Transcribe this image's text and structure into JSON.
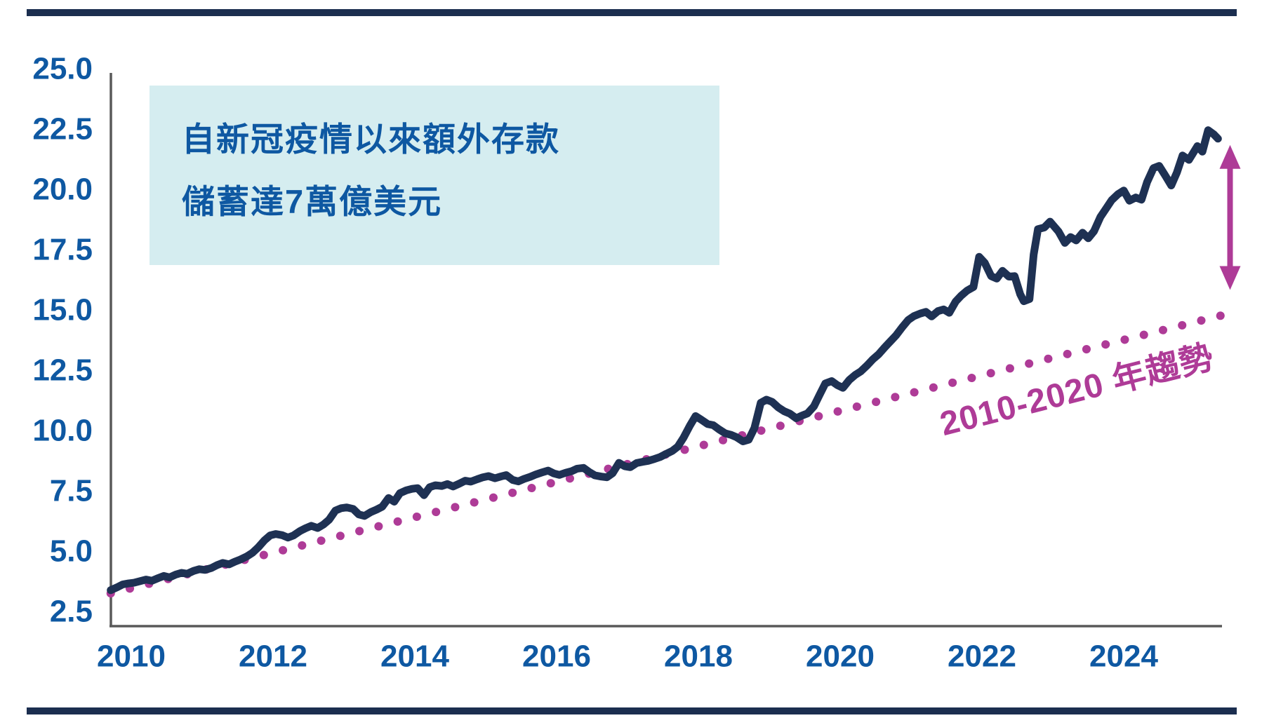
{
  "page": {
    "background": "#ffffff",
    "frame_bar_color": "#1b2e4f"
  },
  "annotation_box": {
    "line1": "自新冠疫情以來額外存款",
    "line2": "儲蓄達7萬億美元",
    "bg_color": "#d5edf0",
    "text_color": "#0e58a2"
  },
  "trend_label": {
    "text": "2010-2020 年趨勢",
    "color": "#ae3b97",
    "rotation_deg": -14.2
  },
  "chart_data": {
    "type": "line",
    "title": "自新冠疫情以來額外存款儲蓄達7萬億美元",
    "grid": false,
    "colors": {
      "series": "#1e3153",
      "trend": "#ae3b97",
      "axis_line": "#595959",
      "tick_label": "#0e58a2"
    },
    "x_axis": {
      "min": 2009.7,
      "max": 2025.45,
      "tick_values": [
        2010,
        2012,
        2014,
        2016,
        2018,
        2020,
        2022,
        2024
      ],
      "tick_labels": [
        "2010",
        "2012",
        "2014",
        "2016",
        "2018",
        "2020",
        "2022",
        "2024"
      ]
    },
    "y_axis": {
      "min": 1.9,
      "max": 25.0,
      "tick_values": [
        25.0,
        22.5,
        20.0,
        17.5,
        15.0,
        12.5,
        10.0,
        7.5,
        5.0,
        2.5
      ],
      "tick_labels": [
        "25.0",
        "22.5",
        "20.0",
        "17.5",
        "15.0",
        "12.5",
        "10.0",
        "7.5",
        "5.0",
        "2.5"
      ]
    },
    "series": [
      {
        "style": "solid",
        "color": "#1e3153",
        "points": [
          [
            2009.71,
            3.38
          ],
          [
            2009.8,
            3.5
          ],
          [
            2009.88,
            3.62
          ],
          [
            2009.96,
            3.66
          ],
          [
            2010.04,
            3.69
          ],
          [
            2010.13,
            3.76
          ],
          [
            2010.21,
            3.82
          ],
          [
            2010.29,
            3.77
          ],
          [
            2010.38,
            3.88
          ],
          [
            2010.46,
            3.97
          ],
          [
            2010.54,
            3.91
          ],
          [
            2010.63,
            4.03
          ],
          [
            2010.71,
            4.1
          ],
          [
            2010.79,
            4.06
          ],
          [
            2010.88,
            4.18
          ],
          [
            2010.96,
            4.25
          ],
          [
            2011.04,
            4.22
          ],
          [
            2011.13,
            4.3
          ],
          [
            2011.21,
            4.42
          ],
          [
            2011.29,
            4.51
          ],
          [
            2011.38,
            4.45
          ],
          [
            2011.46,
            4.56
          ],
          [
            2011.54,
            4.65
          ],
          [
            2011.63,
            4.78
          ],
          [
            2011.71,
            4.93
          ],
          [
            2011.79,
            5.15
          ],
          [
            2011.88,
            5.45
          ],
          [
            2011.96,
            5.65
          ],
          [
            2012.04,
            5.71
          ],
          [
            2012.13,
            5.66
          ],
          [
            2012.21,
            5.56
          ],
          [
            2012.29,
            5.65
          ],
          [
            2012.38,
            5.83
          ],
          [
            2012.46,
            5.95
          ],
          [
            2012.54,
            6.05
          ],
          [
            2012.63,
            5.96
          ],
          [
            2012.71,
            6.1
          ],
          [
            2012.79,
            6.3
          ],
          [
            2012.88,
            6.68
          ],
          [
            2012.96,
            6.78
          ],
          [
            2013.04,
            6.81
          ],
          [
            2013.13,
            6.75
          ],
          [
            2013.21,
            6.52
          ],
          [
            2013.29,
            6.46
          ],
          [
            2013.38,
            6.62
          ],
          [
            2013.46,
            6.72
          ],
          [
            2013.54,
            6.84
          ],
          [
            2013.63,
            7.2
          ],
          [
            2013.71,
            7.05
          ],
          [
            2013.79,
            7.4
          ],
          [
            2013.88,
            7.52
          ],
          [
            2013.96,
            7.58
          ],
          [
            2014.04,
            7.61
          ],
          [
            2014.13,
            7.32
          ],
          [
            2014.21,
            7.65
          ],
          [
            2014.29,
            7.73
          ],
          [
            2014.38,
            7.7
          ],
          [
            2014.46,
            7.78
          ],
          [
            2014.54,
            7.68
          ],
          [
            2014.63,
            7.8
          ],
          [
            2014.71,
            7.92
          ],
          [
            2014.79,
            7.88
          ],
          [
            2014.88,
            7.98
          ],
          [
            2014.96,
            8.06
          ],
          [
            2015.04,
            8.11
          ],
          [
            2015.13,
            8.02
          ],
          [
            2015.21,
            8.09
          ],
          [
            2015.29,
            8.15
          ],
          [
            2015.38,
            7.95
          ],
          [
            2015.46,
            7.89
          ],
          [
            2015.54,
            7.99
          ],
          [
            2015.63,
            8.08
          ],
          [
            2015.71,
            8.18
          ],
          [
            2015.79,
            8.26
          ],
          [
            2015.88,
            8.34
          ],
          [
            2015.96,
            8.22
          ],
          [
            2016.04,
            8.16
          ],
          [
            2016.13,
            8.25
          ],
          [
            2016.21,
            8.31
          ],
          [
            2016.29,
            8.42
          ],
          [
            2016.38,
            8.45
          ],
          [
            2016.46,
            8.28
          ],
          [
            2016.54,
            8.14
          ],
          [
            2016.63,
            8.09
          ],
          [
            2016.71,
            8.06
          ],
          [
            2016.79,
            8.23
          ],
          [
            2016.88,
            8.66
          ],
          [
            2016.96,
            8.52
          ],
          [
            2017.04,
            8.48
          ],
          [
            2017.13,
            8.65
          ],
          [
            2017.21,
            8.7
          ],
          [
            2017.29,
            8.74
          ],
          [
            2017.38,
            8.82
          ],
          [
            2017.46,
            8.9
          ],
          [
            2017.54,
            9.02
          ],
          [
            2017.63,
            9.15
          ],
          [
            2017.71,
            9.33
          ],
          [
            2017.79,
            9.7
          ],
          [
            2017.88,
            10.2
          ],
          [
            2017.96,
            10.6
          ],
          [
            2018.04,
            10.45
          ],
          [
            2018.13,
            10.27
          ],
          [
            2018.21,
            10.22
          ],
          [
            2018.29,
            10.05
          ],
          [
            2018.38,
            9.88
          ],
          [
            2018.46,
            9.82
          ],
          [
            2018.54,
            9.72
          ],
          [
            2018.63,
            9.55
          ],
          [
            2018.71,
            9.62
          ],
          [
            2018.79,
            10.1
          ],
          [
            2018.88,
            11.15
          ],
          [
            2018.96,
            11.28
          ],
          [
            2019.04,
            11.19
          ],
          [
            2019.13,
            10.95
          ],
          [
            2019.21,
            10.8
          ],
          [
            2019.29,
            10.7
          ],
          [
            2019.38,
            10.51
          ],
          [
            2019.46,
            10.62
          ],
          [
            2019.54,
            10.71
          ],
          [
            2019.63,
            11.0
          ],
          [
            2019.71,
            11.48
          ],
          [
            2019.79,
            11.95
          ],
          [
            2019.88,
            12.05
          ],
          [
            2019.96,
            11.88
          ],
          [
            2020.04,
            11.77
          ],
          [
            2020.13,
            12.1
          ],
          [
            2020.21,
            12.3
          ],
          [
            2020.29,
            12.45
          ],
          [
            2020.38,
            12.7
          ],
          [
            2020.46,
            12.95
          ],
          [
            2020.54,
            13.15
          ],
          [
            2020.63,
            13.45
          ],
          [
            2020.71,
            13.7
          ],
          [
            2020.79,
            13.95
          ],
          [
            2020.88,
            14.3
          ],
          [
            2020.96,
            14.58
          ],
          [
            2021.04,
            14.74
          ],
          [
            2021.13,
            14.85
          ],
          [
            2021.21,
            14.92
          ],
          [
            2021.29,
            14.73
          ],
          [
            2021.38,
            14.95
          ],
          [
            2021.46,
            15.02
          ],
          [
            2021.54,
            14.88
          ],
          [
            2021.63,
            15.35
          ],
          [
            2021.71,
            15.6
          ],
          [
            2021.79,
            15.8
          ],
          [
            2021.88,
            15.95
          ],
          [
            2021.96,
            17.2
          ],
          [
            2022.04,
            16.95
          ],
          [
            2022.13,
            16.4
          ],
          [
            2022.21,
            16.3
          ],
          [
            2022.29,
            16.62
          ],
          [
            2022.38,
            16.38
          ],
          [
            2022.46,
            16.4
          ],
          [
            2022.54,
            15.65
          ],
          [
            2022.59,
            15.36
          ],
          [
            2022.67,
            15.45
          ],
          [
            2022.73,
            17.3
          ],
          [
            2022.79,
            18.35
          ],
          [
            2022.88,
            18.42
          ],
          [
            2022.96,
            18.66
          ],
          [
            2023.08,
            18.25
          ],
          [
            2023.17,
            17.78
          ],
          [
            2023.25,
            18.02
          ],
          [
            2023.33,
            17.88
          ],
          [
            2023.42,
            18.2
          ],
          [
            2023.5,
            17.97
          ],
          [
            2023.58,
            18.26
          ],
          [
            2023.67,
            18.85
          ],
          [
            2023.75,
            19.2
          ],
          [
            2023.83,
            19.55
          ],
          [
            2023.92,
            19.8
          ],
          [
            2024.0,
            19.95
          ],
          [
            2024.08,
            19.53
          ],
          [
            2024.17,
            19.66
          ],
          [
            2024.25,
            19.57
          ],
          [
            2024.33,
            20.3
          ],
          [
            2024.42,
            20.88
          ],
          [
            2024.5,
            20.97
          ],
          [
            2024.58,
            20.6
          ],
          [
            2024.67,
            20.16
          ],
          [
            2024.75,
            20.7
          ],
          [
            2024.83,
            21.4
          ],
          [
            2024.92,
            21.22
          ],
          [
            2025.04,
            21.79
          ],
          [
            2025.11,
            21.56
          ],
          [
            2025.19,
            22.45
          ],
          [
            2025.27,
            22.28
          ],
          [
            2025.33,
            22.1
          ]
        ]
      }
    ],
    "trend": {
      "style": "dotted",
      "color": "#ae3b97",
      "start": [
        2009.71,
        3.25
      ],
      "end": [
        2025.46,
        14.83
      ]
    },
    "gap_arrow": {
      "year": 2025.5,
      "from_value": 15.83,
      "to_value": 21.84,
      "color": "#ae3b97"
    },
    "legend_position": "none"
  }
}
